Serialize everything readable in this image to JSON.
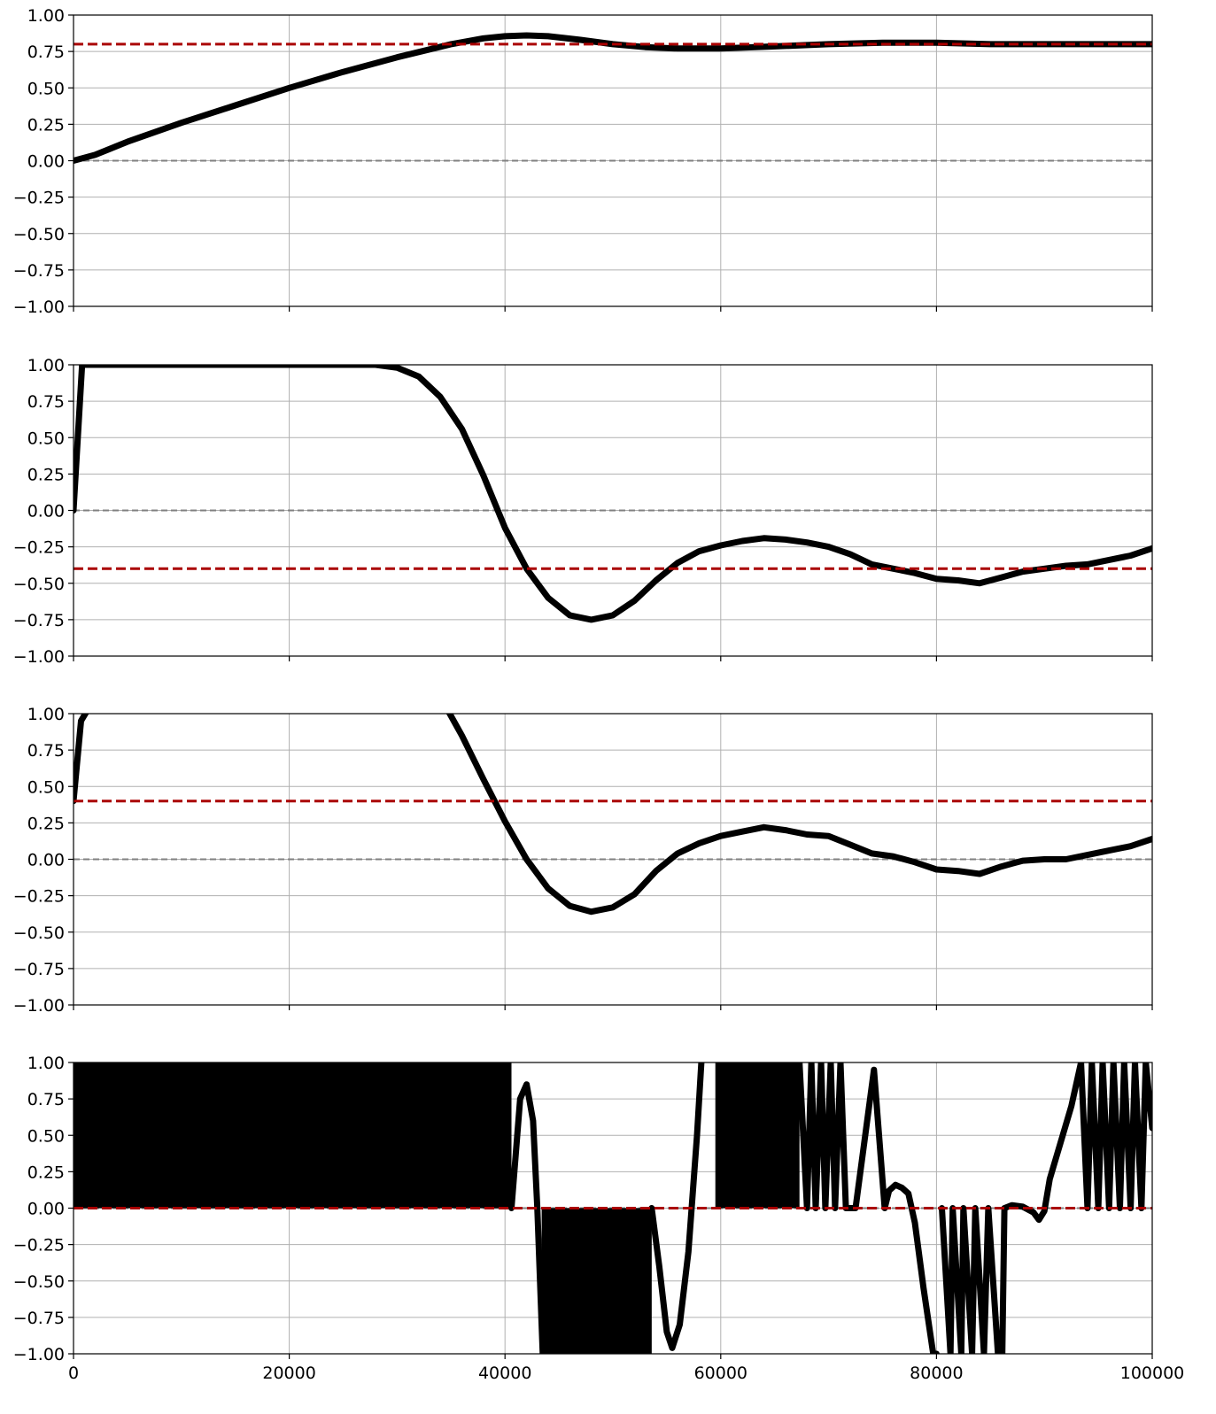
{
  "chart_data": [
    {
      "type": "line",
      "xlim": [
        0,
        100000
      ],
      "ylim": [
        -1.0,
        1.0
      ],
      "yticks": [
        "1.00",
        "0.75",
        "0.50",
        "0.25",
        "0.00",
        "−0.25",
        "−0.50",
        "−0.75",
        "−1.00"
      ],
      "xticks": [],
      "grid": true,
      "reference_lines": {
        "zero": 0.0,
        "target": 0.8
      },
      "series": [
        {
          "color": "#000000",
          "x": [
            0,
            2000,
            5000,
            10000,
            15000,
            20000,
            25000,
            30000,
            35000,
            38000,
            40000,
            42000,
            44000,
            47000,
            50000,
            53000,
            56000,
            60000,
            65000,
            70000,
            75000,
            80000,
            85000,
            90000,
            95000,
            100000
          ],
          "y": [
            0.0,
            0.04,
            0.13,
            0.26,
            0.38,
            0.5,
            0.61,
            0.71,
            0.8,
            0.84,
            0.855,
            0.86,
            0.855,
            0.83,
            0.8,
            0.78,
            0.77,
            0.77,
            0.785,
            0.8,
            0.81,
            0.81,
            0.8,
            0.8,
            0.8,
            0.8
          ]
        }
      ]
    },
    {
      "type": "line",
      "xlim": [
        0,
        100000
      ],
      "ylim": [
        -1.0,
        1.0
      ],
      "yticks": [
        "1.00",
        "0.75",
        "0.50",
        "0.25",
        "0.00",
        "−0.25",
        "−0.50",
        "−0.75",
        "−1.00"
      ],
      "xticks": [],
      "grid": true,
      "reference_lines": {
        "zero": 0.0,
        "target": -0.4
      },
      "series": [
        {
          "color": "#000000",
          "x": [
            0,
            800,
            2000,
            10000,
            20000,
            28000,
            30000,
            32000,
            34000,
            36000,
            38000,
            40000,
            42000,
            44000,
            46000,
            48000,
            50000,
            52000,
            54000,
            56000,
            58000,
            60000,
            62000,
            64000,
            66000,
            68000,
            70000,
            72000,
            74000,
            76000,
            78000,
            80000,
            82000,
            84000,
            86000,
            88000,
            90000,
            92000,
            94000,
            96000,
            98000,
            100000
          ],
          "y": [
            0.0,
            1.0,
            1.0,
            1.0,
            1.0,
            1.0,
            0.98,
            0.92,
            0.78,
            0.56,
            0.24,
            -0.12,
            -0.4,
            -0.6,
            -0.72,
            -0.75,
            -0.72,
            -0.62,
            -0.48,
            -0.36,
            -0.28,
            -0.24,
            -0.21,
            -0.19,
            -0.2,
            -0.22,
            -0.25,
            -0.3,
            -0.37,
            -0.4,
            -0.43,
            -0.47,
            -0.48,
            -0.5,
            -0.46,
            -0.42,
            -0.4,
            -0.38,
            -0.37,
            -0.34,
            -0.31,
            -0.26
          ]
        }
      ]
    },
    {
      "type": "line",
      "xlim": [
        0,
        100000
      ],
      "ylim": [
        -1.0,
        1.0
      ],
      "yticks": [
        "1.00",
        "0.75",
        "0.50",
        "0.25",
        "0.00",
        "−0.25",
        "−0.50",
        "−0.75",
        "−1.00"
      ],
      "xticks": [],
      "grid": true,
      "reference_lines": {
        "zero": 0.0,
        "target": 0.4
      },
      "series": [
        {
          "color": "#000000",
          "x": [
            0,
            700,
            1500
          ],
          "y": [
            0.4,
            0.95,
            1.05
          ]
        },
        {
          "color": "#000000",
          "x": [
            34500,
            36000,
            38000,
            40000,
            42000,
            44000,
            46000,
            48000,
            50000,
            52000,
            54000,
            56000,
            58000,
            60000,
            62000,
            64000,
            66000,
            68000,
            70000,
            72000,
            74000,
            76000,
            78000,
            80000,
            82000,
            84000,
            86000,
            88000,
            90000,
            92000,
            94000,
            96000,
            98000,
            100000
          ],
          "y": [
            1.05,
            0.85,
            0.55,
            0.26,
            0.0,
            -0.2,
            -0.32,
            -0.36,
            -0.33,
            -0.24,
            -0.08,
            0.04,
            0.11,
            0.16,
            0.19,
            0.22,
            0.2,
            0.17,
            0.16,
            0.1,
            0.04,
            0.02,
            -0.02,
            -0.07,
            -0.08,
            -0.1,
            -0.05,
            -0.01,
            0.0,
            0.0,
            0.03,
            0.06,
            0.09,
            0.14
          ]
        }
      ]
    },
    {
      "type": "line",
      "xlim": [
        0,
        100000
      ],
      "ylim": [
        -1.0,
        1.0
      ],
      "yticks": [
        "1.00",
        "0.75",
        "0.50",
        "0.25",
        "0.00",
        "−0.25",
        "−0.50",
        "−0.75",
        "−1.00"
      ],
      "xticks": [
        "0",
        "20000",
        "40000",
        "60000",
        "80000",
        "100000"
      ],
      "grid": true,
      "reference_lines": {
        "zero": 0.0,
        "target": 0.0
      },
      "filled_regions": [
        {
          "x0": 0,
          "x1": 40600,
          "y0": 0.0,
          "y1": 1.0
        },
        {
          "x0": 43400,
          "x1": 53600,
          "y0": -1.0,
          "y1": 0.0
        },
        {
          "x0": 59500,
          "x1": 67300,
          "y0": 0.0,
          "y1": 1.0
        }
      ],
      "series": [
        {
          "color": "#000000",
          "x": [
            40600,
            41400,
            42000,
            42600,
            43000,
            43500
          ],
          "y": [
            0.0,
            0.75,
            0.85,
            0.6,
            0.0,
            -1.0
          ]
        },
        {
          "color": "#000000",
          "x": [
            53600,
            54300,
            55000,
            55500,
            56200,
            57000,
            57800,
            58200
          ],
          "y": [
            0.0,
            -0.4,
            -0.85,
            -0.96,
            -0.8,
            -0.3,
            0.5,
            1.0
          ]
        },
        {
          "color": "#000000",
          "x": [
            67300,
            68000,
            68400,
            68800,
            69300,
            69700,
            70200,
            70600,
            71100,
            71600,
            72500,
            74200,
            75200,
            75600,
            76200,
            76800,
            77400,
            78000,
            78800,
            79700,
            80000
          ],
          "y": [
            1.0,
            0.0,
            1.0,
            0.0,
            1.0,
            0.0,
            1.0,
            0.0,
            1.0,
            0.0,
            0.0,
            0.95,
            0.0,
            0.12,
            0.16,
            0.14,
            0.1,
            -0.1,
            -0.55,
            -1.0,
            -1.0
          ]
        },
        {
          "color": "#000000",
          "x": [
            80500,
            81300,
            81500,
            82300,
            82500,
            83300,
            83600,
            84400,
            84800,
            85700,
            86100,
            86300,
            87000,
            88000,
            89000,
            89500,
            90000,
            90500,
            91500,
            92500,
            93400,
            94000,
            94400,
            95000,
            95400,
            96000,
            96400,
            97000,
            97400,
            98000,
            98400,
            99000,
            99400,
            100000
          ],
          "y": [
            0.0,
            -1.0,
            0.0,
            -1.0,
            0.0,
            -1.0,
            0.0,
            -1.0,
            0.0,
            -1.0,
            -1.0,
            0.0,
            0.02,
            0.01,
            -0.03,
            -0.08,
            -0.02,
            0.2,
            0.45,
            0.7,
            1.0,
            0.0,
            1.0,
            0.0,
            1.0,
            0.0,
            1.0,
            0.0,
            1.0,
            0.0,
            1.0,
            0.0,
            1.0,
            0.55
          ]
        }
      ]
    }
  ],
  "colors": {
    "line": "#000000",
    "target": "#aa0000",
    "zero": "#808080",
    "grid": "#b0b0b0"
  }
}
